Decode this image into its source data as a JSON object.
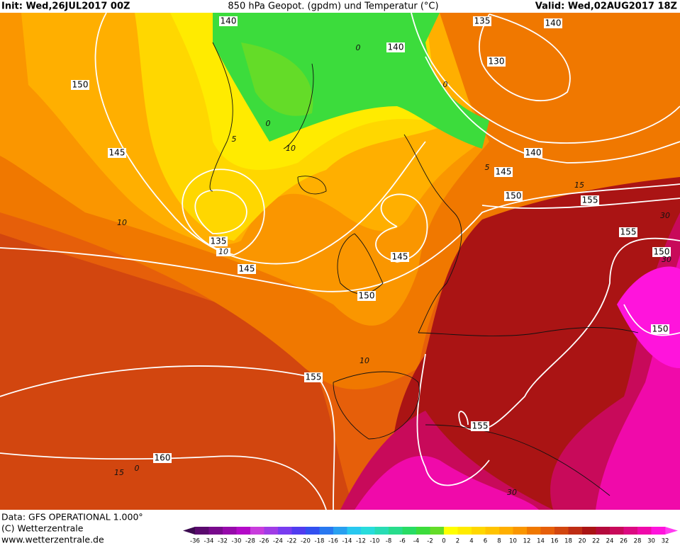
{
  "header": {
    "init": "Init: Wed,26JUL2017 00Z",
    "title": "850 hPa Geopot. (gpdm) und Temperatur (°C)",
    "valid": "Valid: Wed,02AUG2017 18Z"
  },
  "map": {
    "geopotential_labels": [
      140,
      135,
      140,
      140,
      130,
      150,
      145,
      140,
      145,
      150,
      155,
      155,
      150,
      135,
      145,
      145,
      150,
      150,
      155,
      155,
      160
    ],
    "temperature_labels": [
      0,
      0,
      0,
      5,
      10,
      5,
      15,
      10,
      10,
      10,
      15,
      0,
      30,
      30,
      30
    ]
  },
  "footer": {
    "data": "Data: GFS OPERATIONAL 1.000°",
    "copyright": "(C) Wetterzentrale",
    "url": "www.wetterzentrale.de"
  },
  "colorbar": {
    "levels": [
      -36,
      -34,
      -32,
      -30,
      -28,
      -26,
      -24,
      -22,
      -20,
      -18,
      -16,
      -14,
      -12,
      -10,
      -8,
      -6,
      -4,
      -2,
      0,
      2,
      4,
      6,
      8,
      10,
      12,
      14,
      16,
      18,
      20,
      22,
      24,
      26,
      28,
      30,
      32
    ],
    "under_color": "#3c0a50",
    "over_color": "#ff3cf0",
    "colors": [
      "#5a0a6e",
      "#780a8c",
      "#960aaa",
      "#b40ac8",
      "#c83cdc",
      "#a03ce6",
      "#783cf0",
      "#503cf0",
      "#3250f0",
      "#2878f0",
      "#28a0f0",
      "#28c8f0",
      "#28dcdc",
      "#28dcb4",
      "#28dc8c",
      "#28dc64",
      "#3cdc3c",
      "#64dc28",
      "#ffff00",
      "#ffeb00",
      "#ffd700",
      "#ffc300",
      "#ffaf00",
      "#fa9600",
      "#f07800",
      "#e65f0a",
      "#d2460f",
      "#be2d14",
      "#aa1414",
      "#b40a3c",
      "#c80a5a",
      "#dc0a82",
      "#f00aaa",
      "#ff14dc"
    ]
  }
}
